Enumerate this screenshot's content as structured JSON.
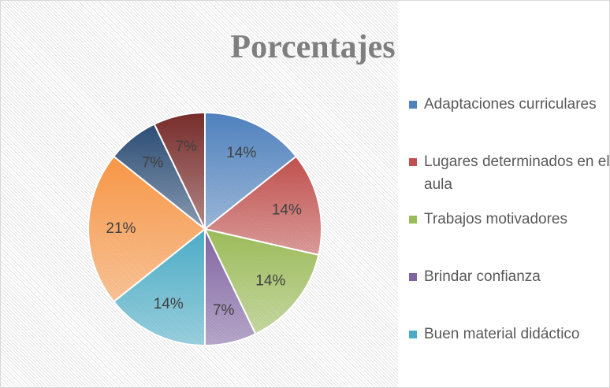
{
  "chart_data": {
    "type": "pie",
    "title": "Porcentajes",
    "categories": [
      "Adaptaciones curriculares",
      "Lugares determinados en el aula",
      "Trabajos motivadores",
      "Brindar confianza",
      "Buen material didáctico",
      null,
      null,
      null
    ],
    "values": [
      14,
      14,
      14,
      7,
      14,
      21,
      7,
      7
    ],
    "value_labels": [
      "14%",
      "14%",
      "14%",
      "7%",
      "14%",
      "21%",
      "7%",
      "7%"
    ],
    "colors": [
      "#4f81bd",
      "#c0504d",
      "#9bbb59",
      "#8064a2",
      "#4bacc6",
      "#f79646",
      "#2c4d75",
      "#772c2a"
    ]
  }
}
